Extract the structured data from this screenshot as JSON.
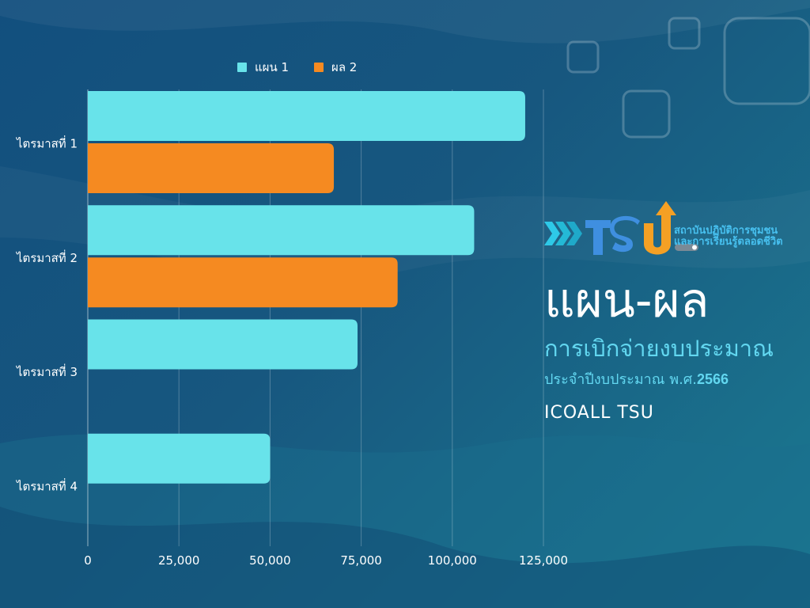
{
  "chart_data": {
    "type": "bar",
    "orientation": "horizontal",
    "categories": [
      "ไตรมาสที่  1",
      "ไตรมาสที่  2",
      "ไตรมาสที่  3",
      "ไตรมาสที่  4"
    ],
    "series": [
      {
        "name": "แผน 1",
        "color": "#68e3ea",
        "values": [
          120000,
          106000,
          74000,
          50000
        ]
      },
      {
        "name": "ผล  2",
        "color": "#f58a21",
        "values": [
          67500,
          85000,
          null,
          null
        ]
      }
    ],
    "xlim": [
      0,
      125000
    ],
    "xticks": [
      0,
      25000,
      50000,
      75000,
      100000,
      125000
    ],
    "xtick_labels": [
      "0",
      "25,000",
      "50,000",
      "75,000",
      "100,000",
      "125,000"
    ],
    "grid": "vertical",
    "legend_position": "top"
  },
  "logo": {
    "line1": "สถาบันปฏิบัติการชุมชน",
    "line2": "และการเรียนรู้ตลอดชีวิต"
  },
  "text": {
    "headline": "แผน-ผล",
    "subtitle": "การเบิกจ่ายงบประมาณ",
    "fiscal_prefix": "ประจำปีงบประมาณ พ.ศ.",
    "fiscal_year": "2566",
    "org": "ICOALL TSU"
  },
  "colors": {
    "accent_cyan": "#62d7f0",
    "accent_blue": "#3f8fe0",
    "accent_orange": "#f5a024"
  }
}
